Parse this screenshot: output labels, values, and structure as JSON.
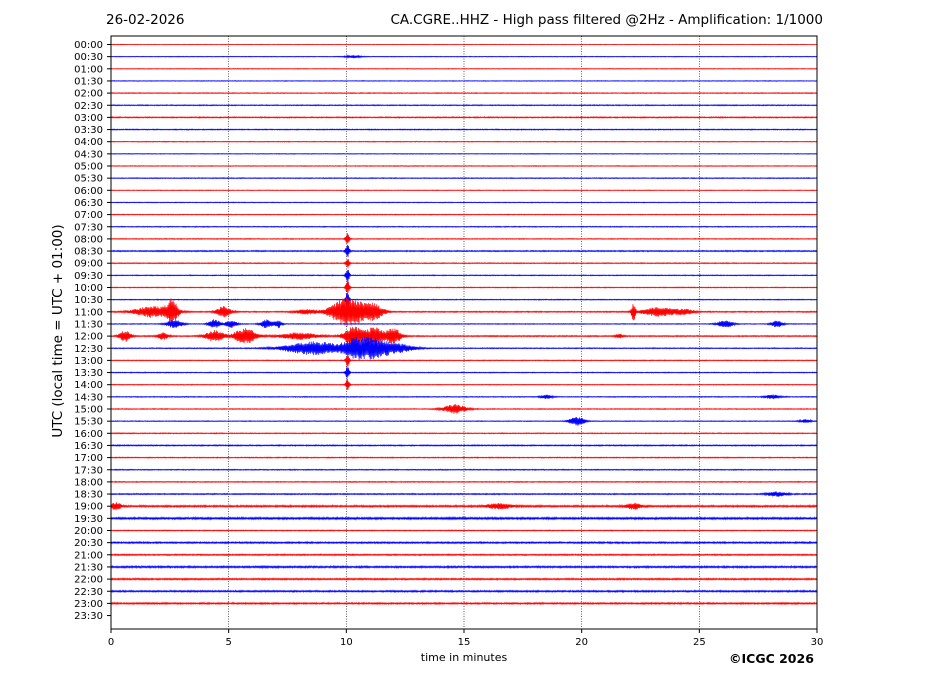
{
  "header": {
    "date": "26-02-2026",
    "title": "CA.CGRE..HHZ - High pass filtered @2Hz - Amplification: 1/1000"
  },
  "footer": {
    "copyright": "©ICGC 2026"
  },
  "chart_data": {
    "type": "line",
    "title": "CA.CGRE..HHZ - High pass filtered @2Hz - Amplification: 1/1000",
    "xlabel": "time in minutes",
    "ylabel": "UTC (local time = UTC + 01:00)",
    "xlim": [
      0,
      30
    ],
    "x_ticks": [
      0,
      5,
      10,
      15,
      20,
      25,
      30
    ],
    "grid": "vertical dotted lines at 5-minute ticks",
    "series_colors": [
      "#ff0000",
      "#0000ff"
    ],
    "rows": [
      {
        "label": "00:00",
        "noise": 0.25,
        "events": []
      },
      {
        "label": "00:30",
        "noise": 0.35,
        "events": [
          {
            "t": 10.3,
            "amp": 1.2,
            "dur": 0.4
          }
        ]
      },
      {
        "label": "01:00",
        "noise": 0.35,
        "events": []
      },
      {
        "label": "01:30",
        "noise": 0.35,
        "events": []
      },
      {
        "label": "02:00",
        "noise": 0.45,
        "events": []
      },
      {
        "label": "02:30",
        "noise": 0.5,
        "events": []
      },
      {
        "label": "03:00",
        "noise": 0.6,
        "events": []
      },
      {
        "label": "03:30",
        "noise": 0.5,
        "events": []
      },
      {
        "label": "04:00",
        "noise": 0.4,
        "events": []
      },
      {
        "label": "04:30",
        "noise": 0.35,
        "events": []
      },
      {
        "label": "05:00",
        "noise": 0.4,
        "events": []
      },
      {
        "label": "05:30",
        "noise": 0.45,
        "events": []
      },
      {
        "label": "06:00",
        "noise": 0.35,
        "events": []
      },
      {
        "label": "06:30",
        "noise": 0.4,
        "events": []
      },
      {
        "label": "07:00",
        "noise": 0.4,
        "events": []
      },
      {
        "label": "07:30",
        "noise": 0.45,
        "events": []
      },
      {
        "label": "08:00",
        "noise": 0.45,
        "events": [
          {
            "t": 10.05,
            "amp": 5,
            "dur": 0.1
          }
        ]
      },
      {
        "label": "08:30",
        "noise": 0.6,
        "events": [
          {
            "t": 10.05,
            "amp": 6,
            "dur": 0.1
          }
        ]
      },
      {
        "label": "09:00",
        "noise": 0.5,
        "events": [
          {
            "t": 10.05,
            "amp": 5,
            "dur": 0.1
          }
        ]
      },
      {
        "label": "09:30",
        "noise": 0.45,
        "events": [
          {
            "t": 10.05,
            "amp": 6,
            "dur": 0.1
          }
        ]
      },
      {
        "label": "10:00",
        "noise": 0.45,
        "events": [
          {
            "t": 10.05,
            "amp": 7,
            "dur": 0.1
          }
        ]
      },
      {
        "label": "10:30",
        "noise": 0.45,
        "events": [
          {
            "t": 10.05,
            "amp": 8,
            "dur": 0.1
          }
        ]
      },
      {
        "label": "11:00",
        "noise": 0.6,
        "events": [
          {
            "t": 1.8,
            "amp": 5,
            "dur": 1.0
          },
          {
            "t": 2.6,
            "amp": 10,
            "dur": 0.3
          },
          {
            "t": 4.8,
            "amp": 5,
            "dur": 0.4
          },
          {
            "t": 8.3,
            "amp": 2,
            "dur": 0.6
          },
          {
            "t": 10.1,
            "amp": 14,
            "dur": 0.9
          },
          {
            "t": 11.2,
            "amp": 6,
            "dur": 0.5
          },
          {
            "t": 22.2,
            "amp": 9,
            "dur": 0.1
          },
          {
            "t": 23.3,
            "amp": 4,
            "dur": 0.9
          },
          {
            "t": 24.4,
            "amp": 2,
            "dur": 0.5
          }
        ]
      },
      {
        "label": "11:30",
        "noise": 0.4,
        "events": [
          {
            "t": 2.7,
            "amp": 4,
            "dur": 0.4
          },
          {
            "t": 4.4,
            "amp": 4,
            "dur": 0.3
          },
          {
            "t": 5.1,
            "amp": 3.5,
            "dur": 0.3
          },
          {
            "t": 6.6,
            "amp": 4,
            "dur": 0.3
          },
          {
            "t": 7.1,
            "amp": 3.5,
            "dur": 0.2
          },
          {
            "t": 26.1,
            "amp": 3.5,
            "dur": 0.4
          },
          {
            "t": 28.3,
            "amp": 3,
            "dur": 0.3
          }
        ]
      },
      {
        "label": "12:00",
        "noise": 0.6,
        "events": [
          {
            "t": 0.6,
            "amp": 5,
            "dur": 0.3
          },
          {
            "t": 2.2,
            "amp": 3,
            "dur": 0.3
          },
          {
            "t": 4.4,
            "amp": 5,
            "dur": 0.5
          },
          {
            "t": 5.7,
            "amp": 7,
            "dur": 0.6
          },
          {
            "t": 8.0,
            "amp": 3,
            "dur": 1.0
          },
          {
            "t": 10.3,
            "amp": 9,
            "dur": 0.5
          },
          {
            "t": 11.2,
            "amp": 8,
            "dur": 0.5
          },
          {
            "t": 12.0,
            "amp": 7,
            "dur": 0.4
          },
          {
            "t": 21.6,
            "amp": 2,
            "dur": 0.2
          }
        ]
      },
      {
        "label": "12:30",
        "noise": 0.5,
        "events": [
          {
            "t": 8.6,
            "amp": 6,
            "dur": 1.5
          },
          {
            "t": 10.3,
            "amp": 5,
            "dur": 0.6
          },
          {
            "t": 11.1,
            "amp": 9,
            "dur": 1.0
          },
          {
            "t": 12.3,
            "amp": 3,
            "dur": 0.8
          }
        ]
      },
      {
        "label": "13:00",
        "noise": 0.45,
        "events": [
          {
            "t": 10.05,
            "amp": 6,
            "dur": 0.1
          }
        ]
      },
      {
        "label": "13:30",
        "noise": 0.45,
        "events": [
          {
            "t": 10.05,
            "amp": 6,
            "dur": 0.1
          }
        ]
      },
      {
        "label": "14:00",
        "noise": 0.4,
        "events": [
          {
            "t": 10.05,
            "amp": 5,
            "dur": 0.1
          }
        ]
      },
      {
        "label": "14:30",
        "noise": 0.45,
        "events": [
          {
            "t": 18.5,
            "amp": 1.8,
            "dur": 0.3
          },
          {
            "t": 28.1,
            "amp": 1.8,
            "dur": 0.4
          }
        ]
      },
      {
        "label": "15:00",
        "noise": 0.45,
        "events": [
          {
            "t": 14.6,
            "amp": 4,
            "dur": 0.6
          }
        ]
      },
      {
        "label": "15:30",
        "noise": 0.4,
        "events": [
          {
            "t": 19.8,
            "amp": 4,
            "dur": 0.4
          },
          {
            "t": 29.5,
            "amp": 1.5,
            "dur": 0.3
          }
        ]
      },
      {
        "label": "16:00",
        "noise": 0.5,
        "events": []
      },
      {
        "label": "16:30",
        "noise": 0.6,
        "events": []
      },
      {
        "label": "17:00",
        "noise": 0.5,
        "events": []
      },
      {
        "label": "17:30",
        "noise": 0.5,
        "events": []
      },
      {
        "label": "18:00",
        "noise": 0.5,
        "events": []
      },
      {
        "label": "18:30",
        "noise": 0.6,
        "events": [
          {
            "t": 28.3,
            "amp": 2,
            "dur": 0.5
          }
        ]
      },
      {
        "label": "19:00",
        "noise": 0.9,
        "events": [
          {
            "t": 0.2,
            "amp": 3,
            "dur": 0.3
          },
          {
            "t": 16.5,
            "amp": 2.5,
            "dur": 0.6
          },
          {
            "t": 22.2,
            "amp": 2.5,
            "dur": 0.4
          }
        ]
      },
      {
        "label": "19:30",
        "noise": 1.0,
        "events": []
      },
      {
        "label": "20:00",
        "noise": 0.5,
        "events": []
      },
      {
        "label": "20:30",
        "noise": 0.8,
        "events": []
      },
      {
        "label": "21:00",
        "noise": 0.7,
        "events": []
      },
      {
        "label": "21:30",
        "noise": 0.9,
        "events": []
      },
      {
        "label": "22:00",
        "noise": 0.8,
        "events": []
      },
      {
        "label": "22:30",
        "noise": 0.8,
        "events": []
      },
      {
        "label": "23:00",
        "noise": 0.8,
        "events": []
      },
      {
        "label": "23:30",
        "noise": 0.0,
        "events": []
      }
    ]
  }
}
